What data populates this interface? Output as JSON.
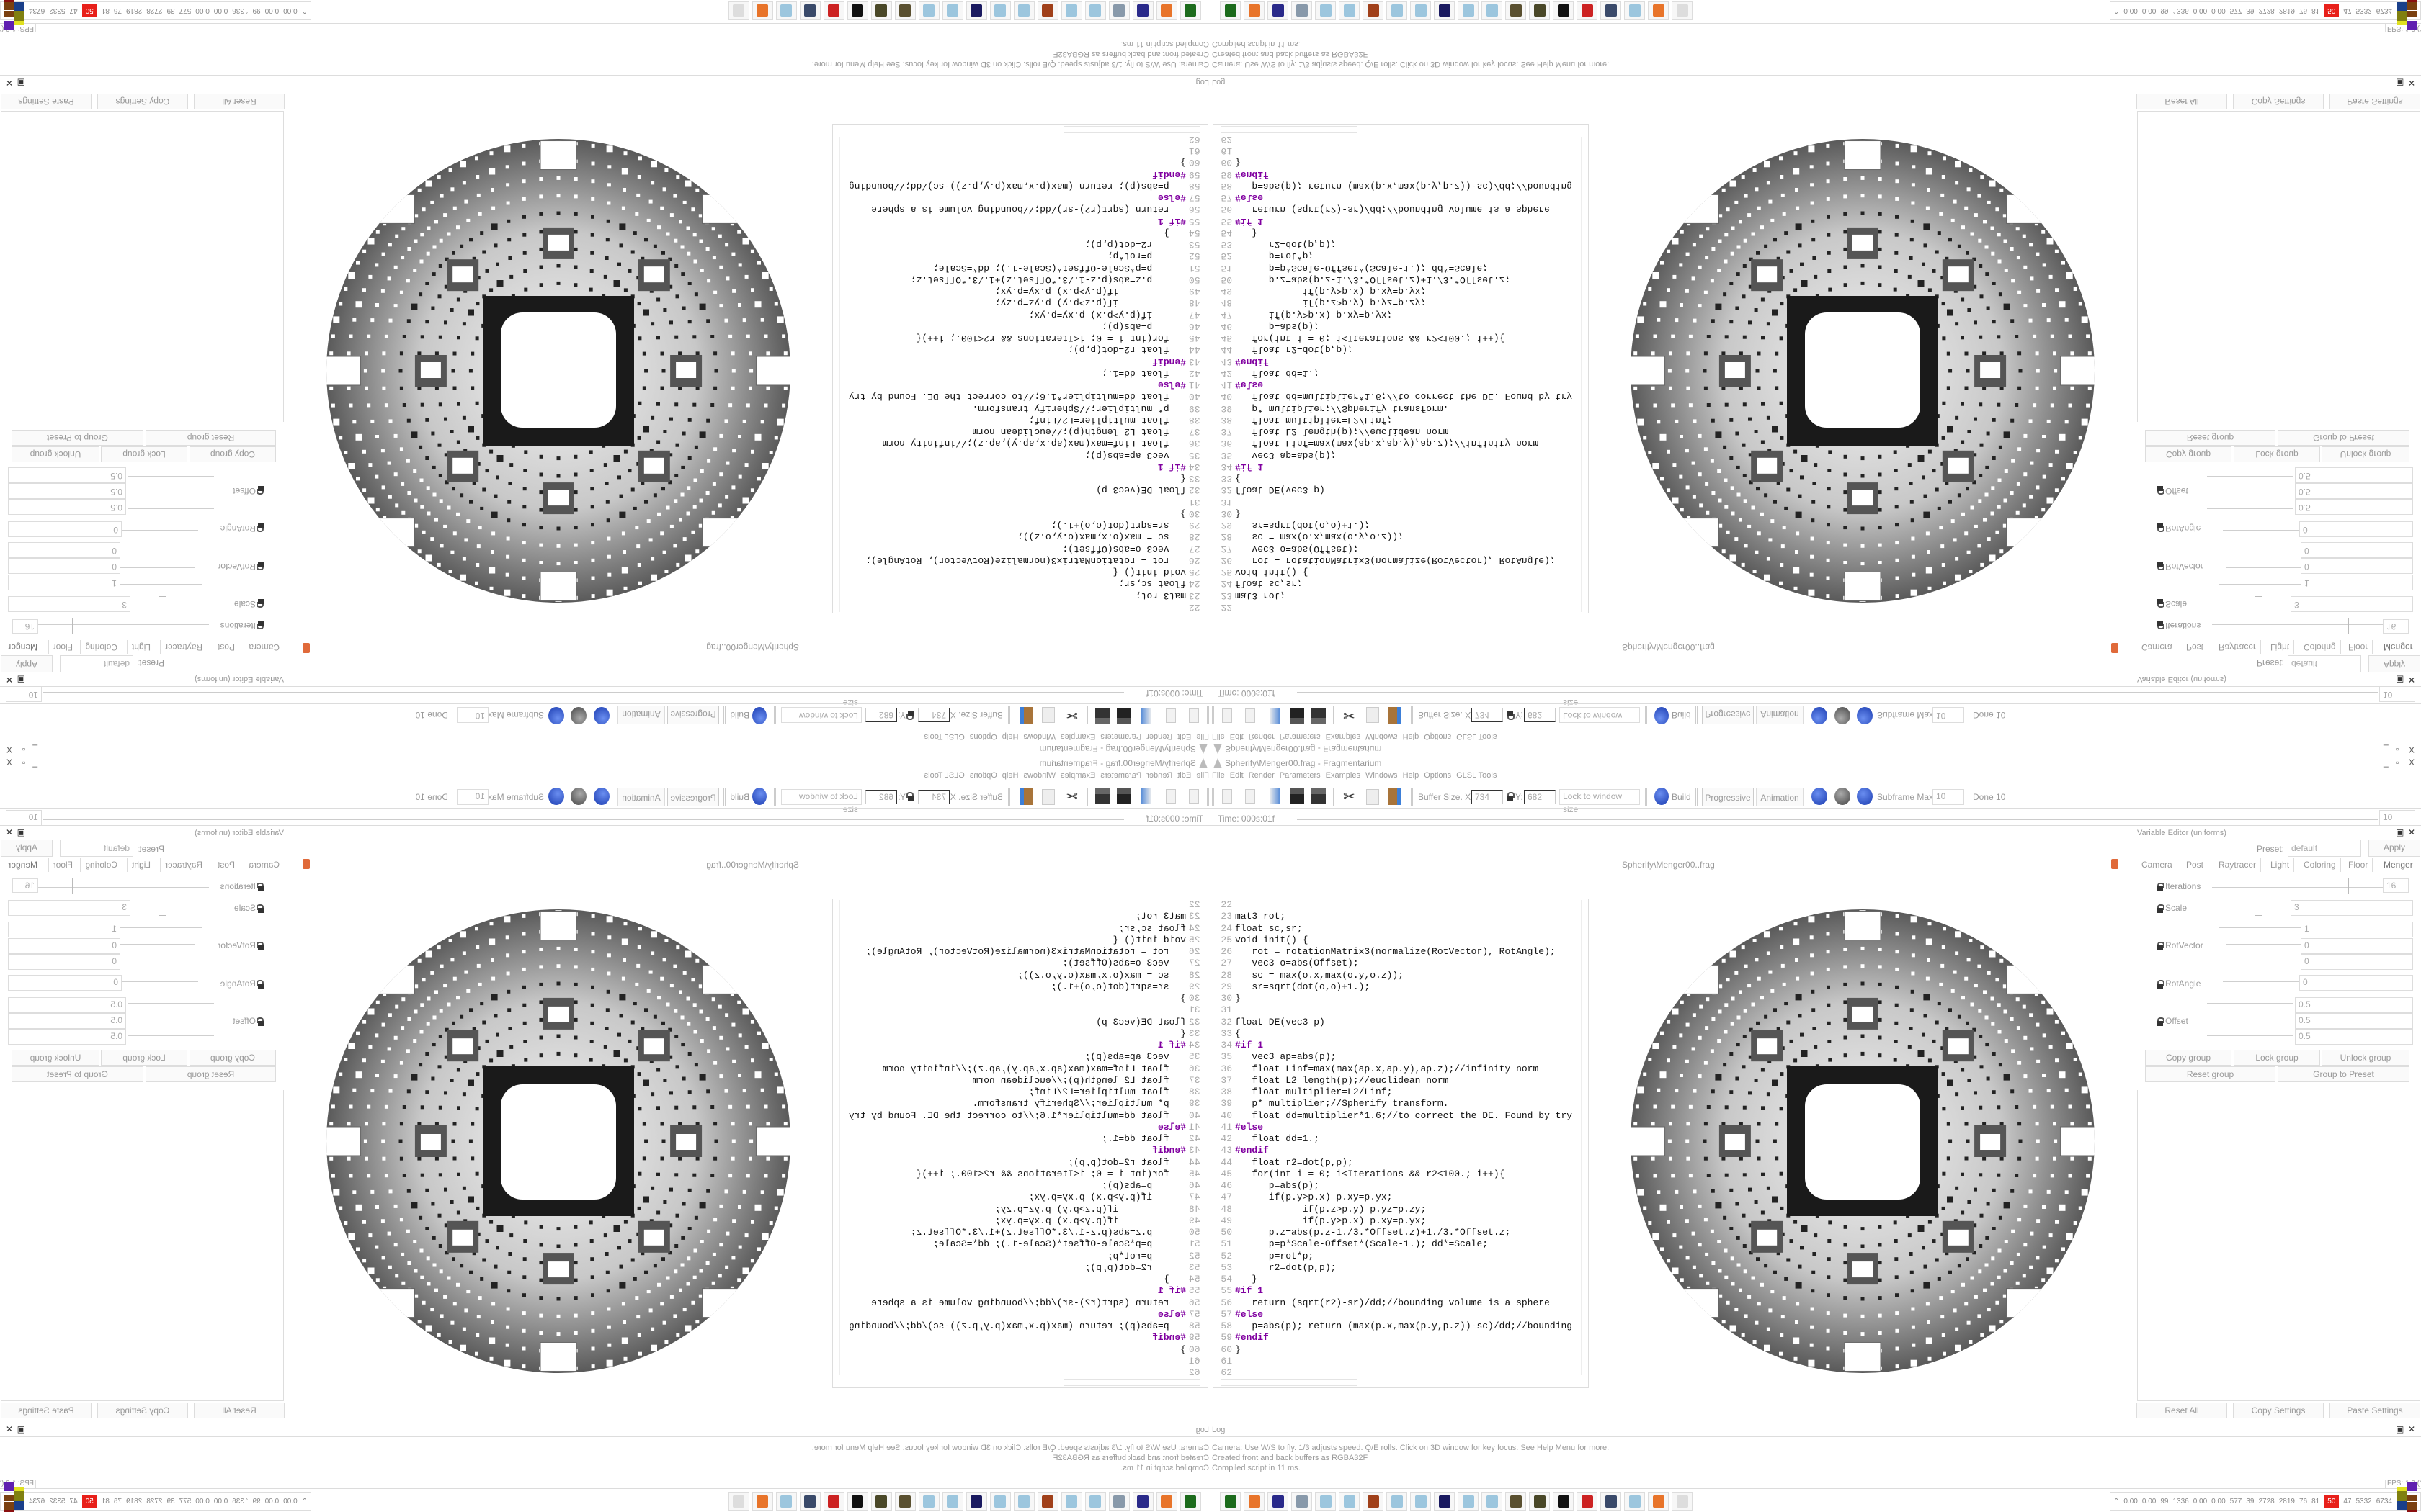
{
  "window": {
    "title": "Spherify\\Menger00.frag - Fragmentarium",
    "controls": [
      "_",
      "▫",
      "X"
    ]
  },
  "menu": [
    "File",
    "Edit",
    "Render",
    "Parameters",
    "Examples",
    "Windows",
    "Help",
    "Options",
    "GLSL Tools"
  ],
  "toolbar": {
    "icons": [
      "2d-icon",
      "3d-icon",
      "open-icon",
      "save-icon",
      "save-as-icon",
      "cut-icon",
      "copy-icon",
      "paste-icon"
    ],
    "buffer_label": "Buffer Size. X:",
    "buffer_x": "734",
    "buffer_y_label": "Y:",
    "buffer_y": "682",
    "lock_mode": "Lock to window size",
    "build": "Build",
    "progressive": "Progressive",
    "animation": "Animation",
    "subframe_label": "Subframe Max:",
    "subframe_value": "10",
    "done": "Done 10"
  },
  "timebar": {
    "time": "Time: 000s:01f",
    "frames": "10"
  },
  "editor": {
    "tab_label": "Spherify\\Menger00..frag",
    "lines": [
      {
        "n": "22",
        "t": ""
      },
      {
        "n": "23",
        "t": "mat3 rot;"
      },
      {
        "n": "24",
        "t": "float sc,sr;"
      },
      {
        "n": "25",
        "t": "void init() {"
      },
      {
        "n": "26",
        "t": "   rot = rotationMatrix3(normalize(RotVector), RotAngle);"
      },
      {
        "n": "27",
        "t": "   vec3 o=abs(Offset);"
      },
      {
        "n": "28",
        "t": "   sc = max(o.x,max(o.y,o.z));"
      },
      {
        "n": "29",
        "t": "   sr=sqrt(dot(o,o)+1.);"
      },
      {
        "n": "30",
        "t": "}"
      },
      {
        "n": "31",
        "t": ""
      },
      {
        "n": "32",
        "t": "float DE(vec3 p)"
      },
      {
        "n": "33",
        "t": "{"
      },
      {
        "n": "34",
        "t": "#if 1"
      },
      {
        "n": "35",
        "t": "   vec3 ap=abs(p);"
      },
      {
        "n": "36",
        "t": "   float Linf=max(max(ap.x,ap.y),ap.z);//infinity norm"
      },
      {
        "n": "37",
        "t": "   float L2=length(p);//euclidean norm"
      },
      {
        "n": "38",
        "t": "   float multiplier=L2/Linf;"
      },
      {
        "n": "39",
        "t": "   p*=multiplier;//Spherify transform."
      },
      {
        "n": "40",
        "t": "   float dd=multiplier*1.6;//to correct the DE. Found by try"
      },
      {
        "n": "41",
        "t": "#else"
      },
      {
        "n": "42",
        "t": "   float dd=1.;"
      },
      {
        "n": "43",
        "t": "#endif"
      },
      {
        "n": "44",
        "t": "   float r2=dot(p,p);"
      },
      {
        "n": "45",
        "t": "   for(int i = 0; i<Iterations && r2<100.; i++){"
      },
      {
        "n": "46",
        "t": "      p=abs(p);"
      },
      {
        "n": "47",
        "t": "      if(p.y>p.x) p.xy=p.yx;"
      },
      {
        "n": "48",
        "t": "            if(p.z>p.y) p.yz=p.zy;"
      },
      {
        "n": "49",
        "t": "            if(p.y>p.x) p.xy=p.yx;"
      },
      {
        "n": "50",
        "t": "      p.z=abs(p.z-1./3.*Offset.z)+1./3.*Offset.z;"
      },
      {
        "n": "51",
        "t": "      p=p*Scale-Offset*(Scale-1.); dd*=Scale;"
      },
      {
        "n": "52",
        "t": "      p=rot*p;"
      },
      {
        "n": "53",
        "t": "      r2=dot(p,p);"
      },
      {
        "n": "54",
        "t": "   }"
      },
      {
        "n": "55",
        "t": "#if 1"
      },
      {
        "n": "56",
        "t": "   return (sqrt(r2)-sr)/dd;//bounding volume is a sphere"
      },
      {
        "n": "57",
        "t": "#else"
      },
      {
        "n": "58",
        "t": "   p=abs(p); return (max(p.x,max(p.y,p.z))-sc)/dd;//bounding"
      },
      {
        "n": "59",
        "t": "#endif"
      },
      {
        "n": "60",
        "t": "}"
      },
      {
        "n": "61",
        "t": ""
      },
      {
        "n": "62",
        "t": ""
      }
    ]
  },
  "variable_editor": {
    "title": "Variable Editor (uniforms)",
    "preset_label": "Preset:",
    "preset_value": "default",
    "apply": "Apply",
    "tabs": [
      "Camera",
      "Post",
      "Raytracer",
      "Light",
      "Coloring",
      "Floor",
      "Menger"
    ],
    "active_tab": "Menger",
    "params": {
      "iterations": {
        "label": "Iterations",
        "value": "16"
      },
      "scale": {
        "label": "Scale",
        "value": "3"
      },
      "rotvector": {
        "label": "RotVector",
        "values": [
          "1",
          "0",
          "0"
        ]
      },
      "rotangle": {
        "label": "RotAngle",
        "value": "0"
      },
      "offset": {
        "label": "Offset",
        "values": [
          "0.5",
          "0.5",
          "0.5"
        ]
      }
    },
    "group_buttons": [
      "Copy group",
      "Lock group",
      "Unlock group",
      "Reset group",
      "Group to Preset"
    ],
    "bottom_buttons": [
      "Reset All",
      "Copy Settings",
      "Paste Settings"
    ]
  },
  "log": {
    "title": "Log",
    "lines": [
      "Camera: Use W/S to fly. 1/3 adjusts speed. Q/E rolls. Click on 3D window for key focus. See Help Menu for more.",
      "Created front and back buffers as RGBA32F",
      "Compiled script in 11 ms."
    ],
    "fps": "FPS: 1.0 (1s)"
  },
  "taskbar": {
    "apps": [
      "terminal",
      "firefox",
      "floppy-64",
      "scroll",
      "notepad",
      "notepad",
      "bug",
      "notepad",
      "notepad",
      "tex",
      "notepad",
      "notepad",
      "nut",
      "nut",
      "wolf",
      "red-gear",
      "monitor",
      "notepad",
      "firefox",
      "fragmentarium"
    ],
    "app_colors": [
      "#1c6b1c",
      "#e8742a",
      "#2a2a8a",
      "#8899aa",
      "#9cc6de",
      "#9cc6de",
      "#a0401a",
      "#9cc6de",
      "#9cc6de",
      "#1a1a60",
      "#9cc6de",
      "#9cc6de",
      "#5a5030",
      "#4a4828",
      "#111111",
      "#cc2222",
      "#3a4a6a",
      "#9cc6de",
      "#e8742a",
      "#dddddd"
    ],
    "tray_values": [
      "0.00",
      "0.00",
      "99",
      "1336",
      "0.00",
      "0.00",
      "577",
      "39",
      "2728",
      "2819",
      "76",
      "81",
      "50",
      "47",
      "5332",
      "6734"
    ],
    "tray_highlight_color": "#e8201a"
  }
}
